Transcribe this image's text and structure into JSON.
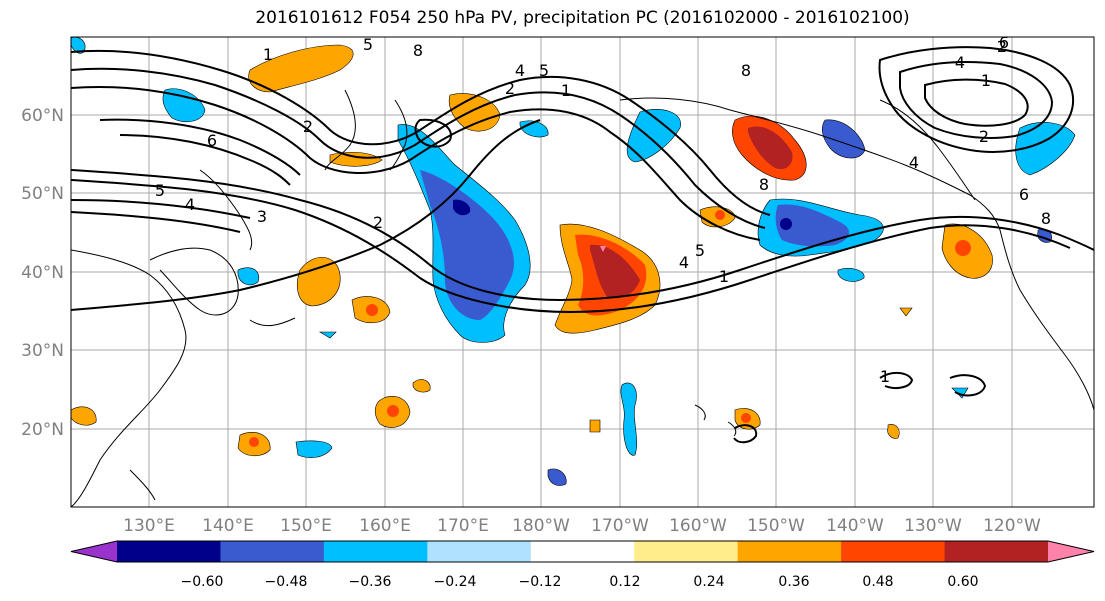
{
  "title": "2016101612 F054 250 hPa PV, precipitation PC (2016102000 - 2016102100)",
  "map": {
    "lat_ticks": [
      "60°N",
      "50°N",
      "40°N",
      "30°N",
      "20°N"
    ],
    "lon_ticks": [
      "130°E",
      "140°E",
      "150°E",
      "160°E",
      "170°E",
      "180°W",
      "170°W",
      "160°W",
      "150°W",
      "140°W",
      "130°W",
      "120°W"
    ],
    "contour_labels": [
      "1",
      "2",
      "3",
      "4",
      "5",
      "6",
      "8",
      "1",
      "2",
      "4",
      "5",
      "8",
      "5",
      "2",
      "1",
      "2",
      "4",
      "6",
      "8",
      "1",
      "2",
      "6",
      "8",
      "4",
      "5",
      "1",
      "4"
    ]
  },
  "colorbar": {
    "ticks": [
      "−0.60",
      "−0.48",
      "−0.36",
      "−0.24",
      "−0.12",
      "0.12",
      "0.24",
      "0.36",
      "0.48",
      "0.60"
    ],
    "colors": [
      "#9a32cd",
      "#00008b",
      "#3a5bcf",
      "#00bfff",
      "#b0e2ff",
      "#ffffff",
      "#ffec8b",
      "#ffa500",
      "#ff4500",
      "#b22222",
      "#ff82ab"
    ]
  }
}
